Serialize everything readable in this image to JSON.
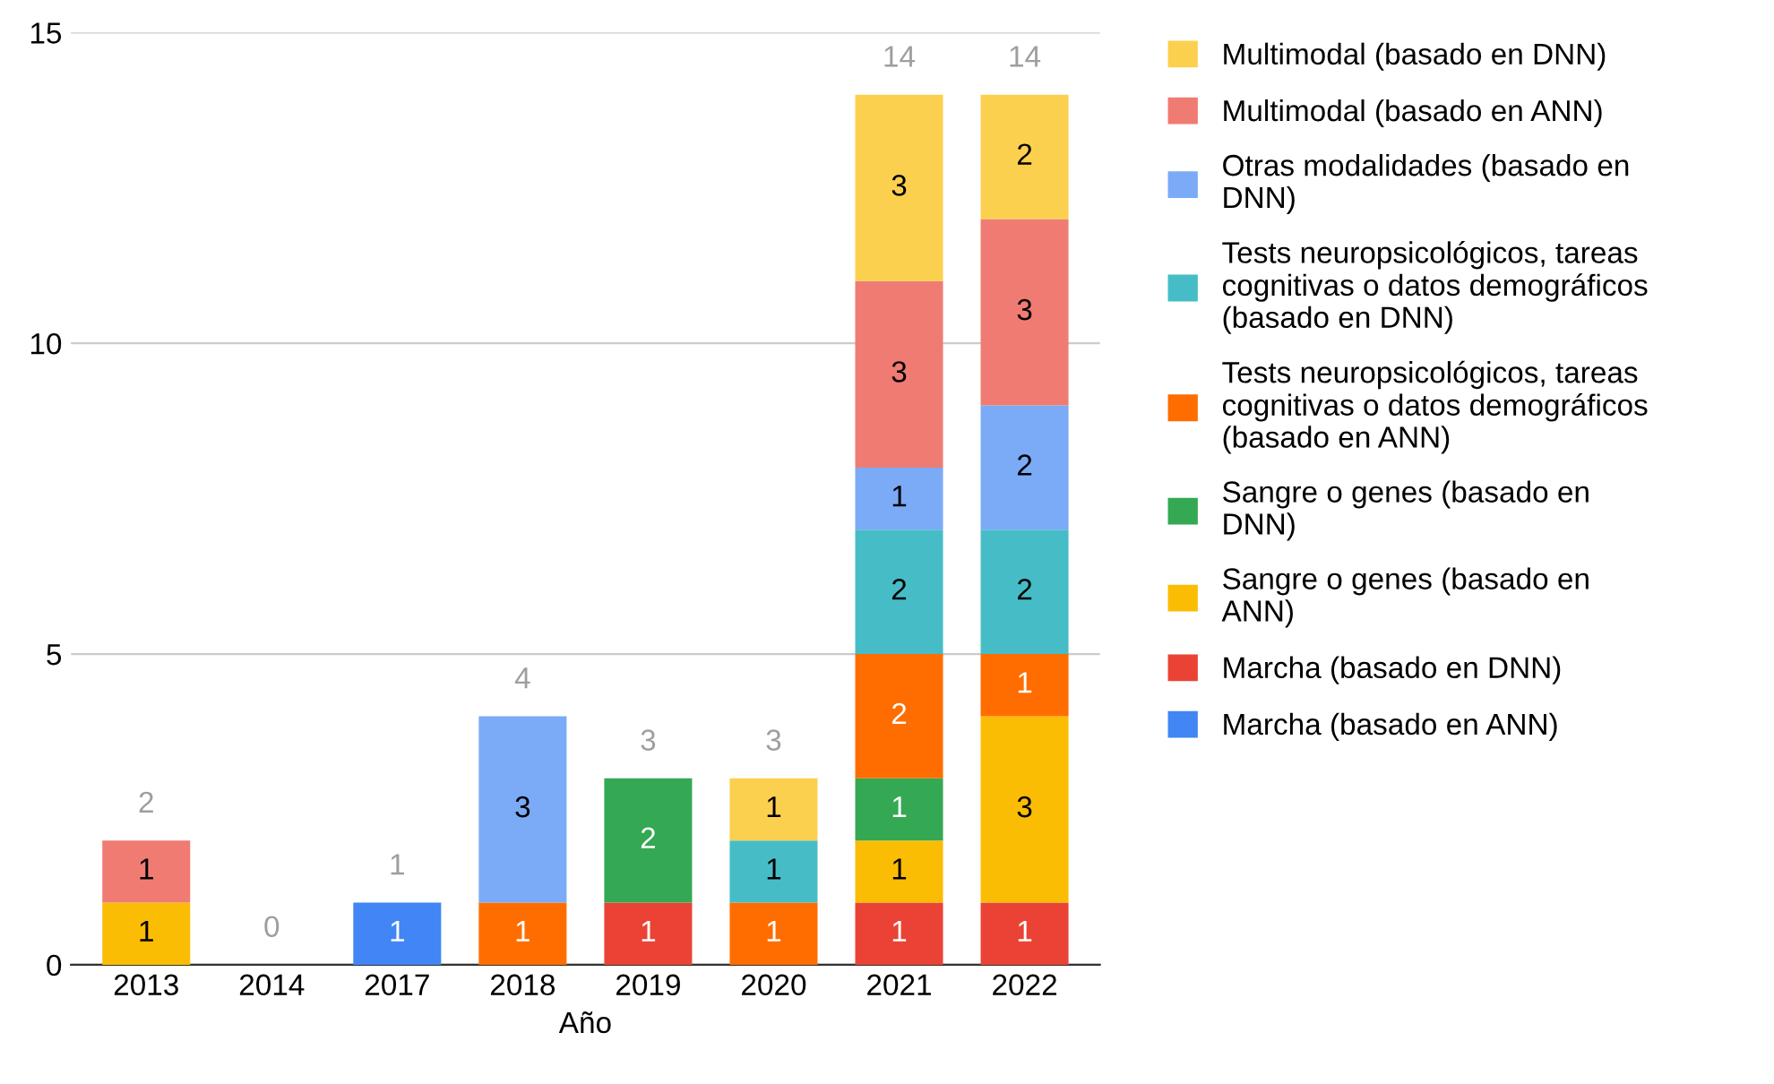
{
  "chart_data": {
    "type": "bar",
    "stacked": true,
    "xlabel": "Año",
    "categories": [
      "2013",
      "2014",
      "2017",
      "2018",
      "2019",
      "2020",
      "2021",
      "2022"
    ],
    "ylim": [
      0,
      15
    ],
    "yticks": [
      0,
      5,
      10,
      15
    ],
    "grid": "y",
    "legend": "right",
    "totals": [
      "2",
      "0",
      "1",
      "4",
      "3",
      "3",
      "14",
      "14"
    ],
    "series": [
      {
        "name": "Marcha (basado en ANN)",
        "color": "#4285f4",
        "values": [
          0,
          0,
          1,
          0,
          0,
          0,
          0,
          0
        ],
        "value_labels": [
          null,
          null,
          "1",
          null,
          null,
          null,
          null,
          null
        ]
      },
      {
        "name": "Marcha (basado en DNN)",
        "color": "#ea4335",
        "values": [
          0,
          0,
          0,
          0,
          1,
          0,
          1,
          1
        ],
        "value_labels": [
          null,
          null,
          null,
          null,
          "1",
          null,
          "1",
          "1"
        ]
      },
      {
        "name": "Sangre o genes (basado en\nANN)",
        "color": "#fbbc04",
        "values": [
          1,
          0,
          0,
          0,
          0,
          0,
          1,
          3
        ],
        "value_labels": [
          "1",
          null,
          null,
          null,
          null,
          null,
          "1",
          "3"
        ]
      },
      {
        "name": "Sangre o genes (basado en\nDNN)",
        "color": "#34a853",
        "values": [
          0,
          0,
          0,
          0,
          2,
          0,
          1,
          0
        ],
        "value_labels": [
          null,
          null,
          null,
          null,
          "2",
          null,
          "1",
          null
        ]
      },
      {
        "name": "Tests neuropsicológicos, tareas\ncognitivas o datos demográficos\n(basado en ANN)",
        "color": "#ff6d01",
        "values": [
          0,
          0,
          0,
          1,
          0,
          1,
          2,
          1
        ],
        "value_labels": [
          null,
          null,
          null,
          "1",
          null,
          "1",
          "2",
          "1"
        ]
      },
      {
        "name": "Tests neuropsicológicos, tareas\ncognitivas o datos demográficos\n(basado en DNN)",
        "color": "#46bdc6",
        "values": [
          0,
          0,
          0,
          0,
          0,
          1,
          2,
          2
        ],
        "value_labels": [
          null,
          null,
          null,
          null,
          null,
          "1",
          "2",
          "2"
        ]
      },
      {
        "name": "Otras modalidades (basado en\nDNN)",
        "color": "#7baaf7",
        "values": [
          0,
          0,
          0,
          3,
          0,
          0,
          1,
          2
        ],
        "value_labels": [
          null,
          null,
          null,
          "3",
          null,
          null,
          "1",
          "2"
        ]
      },
      {
        "name": "Multimodal (basado en ANN)",
        "color": "#f07b72",
        "values": [
          1,
          0,
          0,
          0,
          0,
          0,
          3,
          3
        ],
        "value_labels": [
          "1",
          null,
          null,
          null,
          null,
          null,
          "3",
          "3"
        ]
      },
      {
        "name": "Multimodal (basado en DNN)",
        "color": "#fcd04f",
        "values": [
          0,
          0,
          0,
          0,
          0,
          1,
          3,
          2
        ],
        "value_labels": [
          null,
          null,
          null,
          null,
          null,
          "1",
          "3",
          "2"
        ]
      }
    ]
  }
}
